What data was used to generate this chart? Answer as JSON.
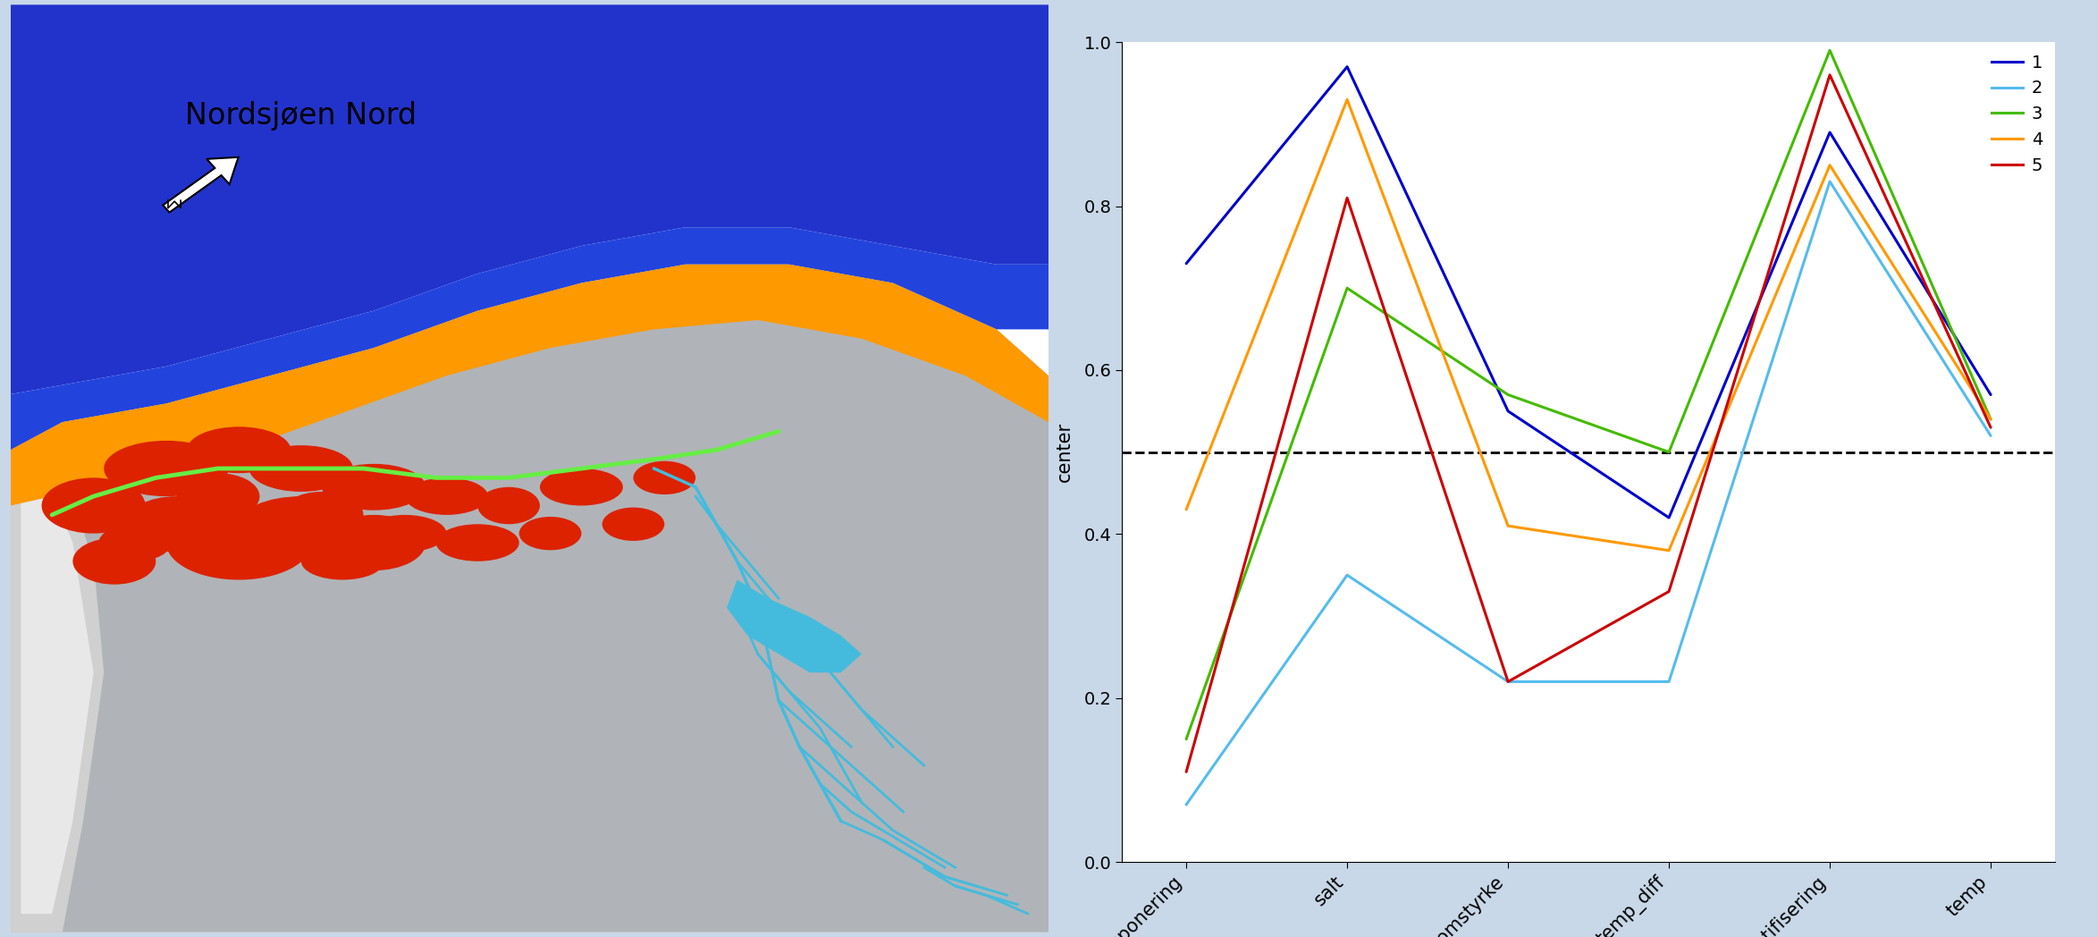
{
  "categories": [
    "eksponering",
    "salt",
    "stromstyrke",
    "temp_diff",
    "stratifisering",
    "temp"
  ],
  "series": {
    "1": {
      "color": "#0000CC",
      "values": [
        0.73,
        0.97,
        0.55,
        0.42,
        0.89,
        0.57
      ]
    },
    "2": {
      "color": "#55BBEE",
      "values": [
        0.07,
        0.35,
        0.22,
        0.22,
        0.83,
        0.52
      ]
    },
    "3": {
      "color": "#44BB00",
      "values": [
        0.15,
        0.7,
        0.57,
        0.5,
        0.99,
        0.54
      ]
    },
    "4": {
      "color": "#FF9900",
      "values": [
        0.43,
        0.93,
        0.41,
        0.38,
        0.85,
        0.54
      ]
    },
    "5": {
      "color": "#CC0000",
      "values": [
        0.11,
        0.81,
        0.22,
        0.33,
        0.96,
        0.53
      ]
    }
  },
  "ylabel": "center",
  "ylim": [
    0.0,
    1.0
  ],
  "yticks": [
    0.0,
    0.2,
    0.4,
    0.6,
    0.8,
    1.0
  ],
  "hline_y": 0.5,
  "map_label": "Nordsjøen Nord",
  "outer_bg": "#C8D8E8",
  "line_width": 2.2,
  "legend_labels": [
    "1",
    "2",
    "3",
    "4",
    "5"
  ],
  "legend_colors": [
    "#0000CC",
    "#55BBEE",
    "#44BB00",
    "#FF9900",
    "#CC0000"
  ]
}
